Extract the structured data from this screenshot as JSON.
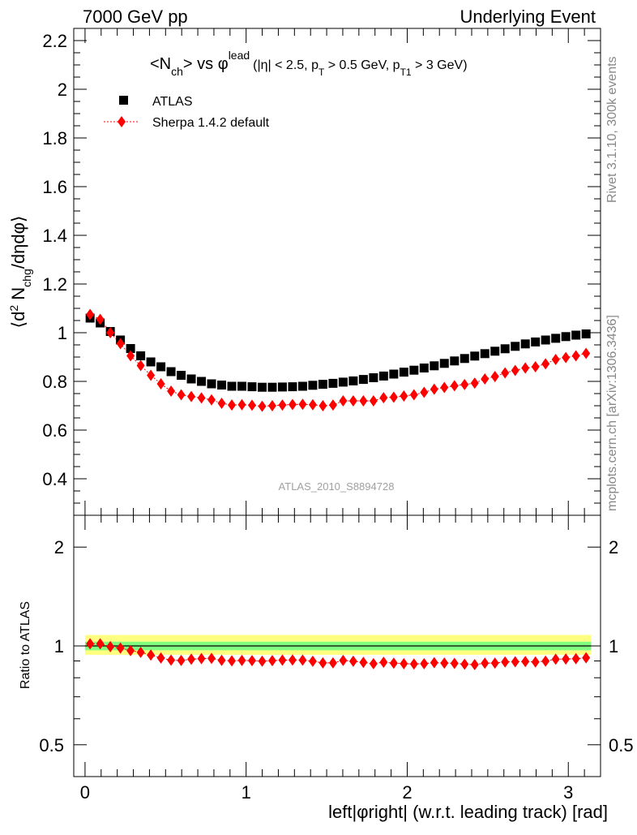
{
  "header": {
    "left": "7000 GeV pp",
    "right": "Underlying Event"
  },
  "side": {
    "rivet": "Rivet 3.1.10,  300k events",
    "mcplots": "mcplots.cern.ch [arXiv:1306.3436]"
  },
  "title": {
    "open": "<N",
    "nsub": "ch",
    "mid": "> vs ",
    "phi": "φ",
    "lead": "lead",
    "cuts_a": "(|η| < 2.5, p",
    "sub_t": "T",
    "cuts_b": " > 0.5 GeV, p",
    "sub_t1": "T1",
    "cuts_c": " > 3 GeV)"
  },
  "legend": {
    "atlas": "ATLAS",
    "sherpa": "Sherpa 1.4.2 default"
  },
  "watermark": "ATLAS_2010_S8894728",
  "y_label_top": {
    "open": "⟨d",
    "sup2": "2",
    "n": " N",
    "chg": "chg",
    "rest": "/dηdφ⟩"
  },
  "y_label_bottom": "Ratio to ATLAS",
  "x_label": "left|φright| (w.r.t. leading track) [rad]",
  "colors": {
    "atlas": "#000000",
    "mc": "#ff0000",
    "band_outer": "#ffff80",
    "band_inner": "#80ff80"
  },
  "chart_data": [
    {
      "type": "scatter",
      "name": "main",
      "x": [
        0.0314,
        0.0942,
        0.1571,
        0.2199,
        0.2827,
        0.3456,
        0.4084,
        0.4712,
        0.5341,
        0.5969,
        0.6597,
        0.7226,
        0.7854,
        0.8482,
        0.9111,
        0.9739,
        1.0367,
        1.0996,
        1.1624,
        1.2252,
        1.2881,
        1.3509,
        1.4137,
        1.4765,
        1.5394,
        1.6022,
        1.665,
        1.7279,
        1.7907,
        1.8535,
        1.9164,
        1.9792,
        2.042,
        2.1049,
        2.1677,
        2.2305,
        2.2934,
        2.3562,
        2.419,
        2.4819,
        2.5447,
        2.6075,
        2.6704,
        2.7332,
        2.796,
        2.8588,
        2.9217,
        2.9845,
        3.0473,
        3.1102
      ],
      "series": [
        {
          "name": "ATLAS",
          "values": [
            1.06,
            1.04,
            1.005,
            0.97,
            0.935,
            0.905,
            0.88,
            0.86,
            0.84,
            0.825,
            0.81,
            0.8,
            0.79,
            0.785,
            0.78,
            0.78,
            0.778,
            0.776,
            0.776,
            0.777,
            0.778,
            0.78,
            0.784,
            0.788,
            0.792,
            0.797,
            0.802,
            0.808,
            0.815,
            0.822,
            0.83,
            0.838,
            0.846,
            0.855,
            0.864,
            0.874,
            0.884,
            0.894,
            0.904,
            0.914,
            0.924,
            0.934,
            0.944,
            0.954,
            0.962,
            0.97,
            0.977,
            0.984,
            0.99,
            0.995
          ]
        },
        {
          "name": "Sherpa 1.4.2 default",
          "values": [
            1.075,
            1.055,
            1.0,
            0.955,
            0.905,
            0.865,
            0.825,
            0.79,
            0.76,
            0.745,
            0.738,
            0.732,
            0.724,
            0.71,
            0.703,
            0.704,
            0.702,
            0.698,
            0.7,
            0.703,
            0.705,
            0.706,
            0.704,
            0.7,
            0.703,
            0.72,
            0.72,
            0.72,
            0.72,
            0.733,
            0.735,
            0.74,
            0.745,
            0.755,
            0.768,
            0.775,
            0.782,
            0.787,
            0.793,
            0.81,
            0.82,
            0.835,
            0.845,
            0.855,
            0.86,
            0.872,
            0.89,
            0.898,
            0.905,
            0.915
          ]
        }
      ],
      "xlim": [
        -0.07,
        3.2
      ],
      "ylim": [
        0.25,
        2.25
      ],
      "yticks": [
        0.4,
        0.6,
        0.8,
        1.0,
        1.2,
        1.4,
        1.6,
        1.8,
        2.0,
        2.2
      ],
      "ytick_labels": [
        "0.4",
        "0.6",
        "0.8",
        "1",
        "1.2",
        "1.4",
        "1.6",
        "1.8",
        "2",
        "2.2"
      ],
      "title": "<Nch> vs φlead (|η| < 2.5, pT > 0.5 GeV, pT1 > 3 GeV)",
      "ylabel": "⟨d2 Nchg/dηdφ⟩"
    },
    {
      "type": "scatter",
      "name": "ratio",
      "yscale": "log",
      "ylim": [
        0.4,
        2.5
      ],
      "yticks": [
        0.5,
        1,
        2
      ],
      "ytick_labels": [
        "0.5",
        "1",
        "2"
      ],
      "xticks": [
        0,
        1,
        2,
        3
      ],
      "xtick_labels": [
        "0",
        "1",
        "2",
        "3"
      ],
      "band_outer": [
        0.94,
        1.08
      ],
      "band_inner": [
        0.97,
        1.03
      ],
      "series": [
        {
          "name": "Sherpa / ATLAS",
          "values": [
            1.015,
            1.015,
            0.995,
            0.985,
            0.968,
            0.956,
            0.938,
            0.919,
            0.905,
            0.903,
            0.911,
            0.915,
            0.916,
            0.904,
            0.901,
            0.903,
            0.902,
            0.899,
            0.902,
            0.905,
            0.906,
            0.905,
            0.898,
            0.888,
            0.888,
            0.903,
            0.898,
            0.891,
            0.883,
            0.892,
            0.886,
            0.883,
            0.881,
            0.883,
            0.889,
            0.887,
            0.885,
            0.88,
            0.877,
            0.886,
            0.887,
            0.894,
            0.895,
            0.896,
            0.894,
            0.899,
            0.911,
            0.912,
            0.914,
            0.92
          ]
        }
      ],
      "ylabel": "Ratio to ATLAS",
      "xlabel": "left|φright| (w.r.t. leading track) [rad]"
    }
  ]
}
